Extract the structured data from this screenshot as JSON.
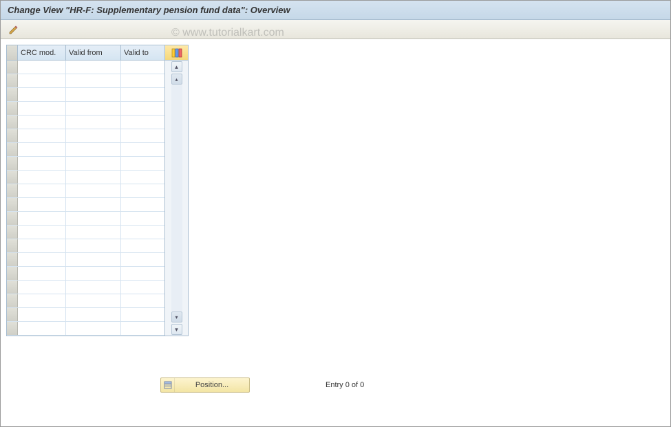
{
  "title": "Change View \"HR-F: Supplementary pension fund data\": Overview",
  "watermark": "© www.tutorialkart.com",
  "table": {
    "columns": [
      "CRC mod.",
      "Valid from",
      "Valid to"
    ],
    "row_count": 20,
    "colors": {
      "header_bg_top": "#e5eef7",
      "header_bg_bottom": "#d5e5f2",
      "border": "#a8bdd0",
      "row_border": "#d5e3f0",
      "selector_bg": "#d8d8d0"
    }
  },
  "position_button": {
    "label": "Position..."
  },
  "entry_status": "Entry 0 of 0",
  "colors": {
    "titlebar_top": "#d5e3f0",
    "titlebar_bottom": "#c5d8e8",
    "toolbar_top": "#f5f5f0",
    "toolbar_bottom": "#e8e6dc",
    "button_top": "#fdf4cf",
    "button_bottom": "#f3e5a5"
  }
}
